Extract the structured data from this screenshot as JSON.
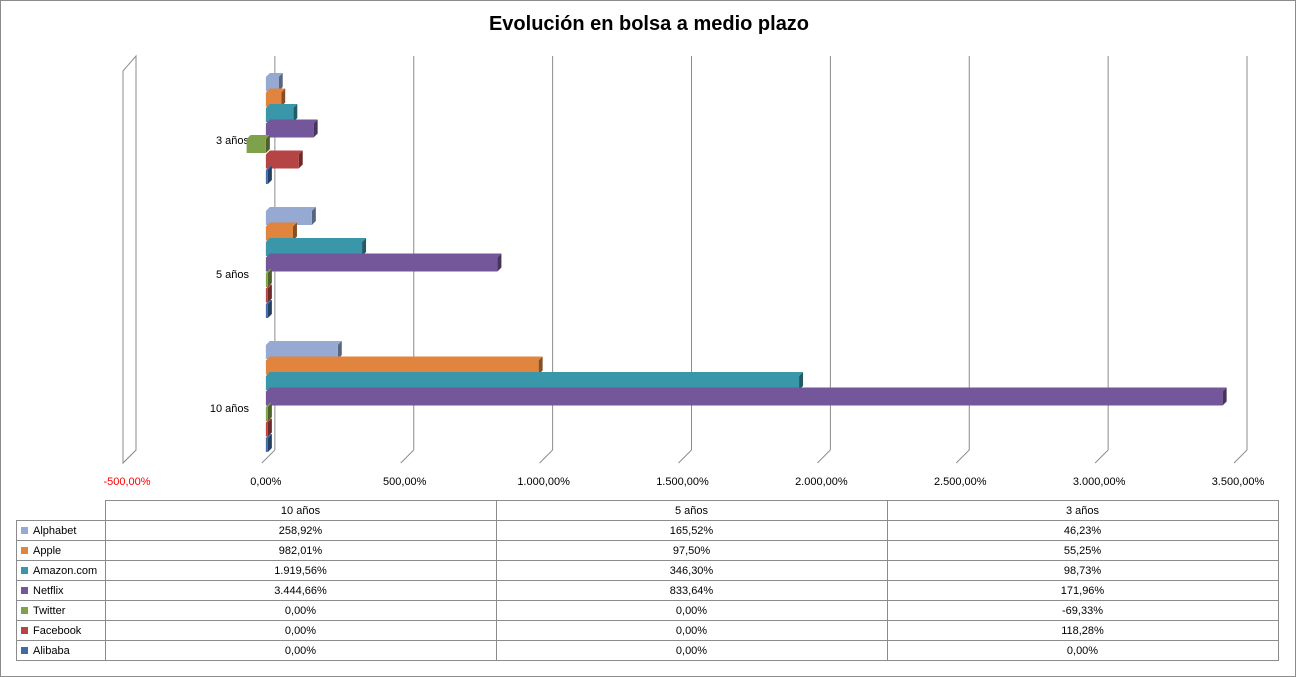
{
  "chart_data": {
    "type": "bar",
    "orientation": "horizontal",
    "style": "3d-clustered",
    "title": "Evolución en bolsa a medio plazo",
    "categories": [
      "10 años",
      "5 años",
      "3 años"
    ],
    "categories_display_order_top_to_bottom": [
      "3 años",
      "5 años",
      "10 años"
    ],
    "series": [
      {
        "name": "Alphabet",
        "color": "#95A9D3",
        "values": [
          258.92,
          165.52,
          46.23
        ],
        "labels": [
          "258,92%",
          "165,52%",
          "46,23%"
        ]
      },
      {
        "name": "Apple",
        "color": "#E0843E",
        "values": [
          982.01,
          97.5,
          55.25
        ],
        "labels": [
          "982,01%",
          "97,50%",
          "55,25%"
        ]
      },
      {
        "name": "Amazon.com",
        "color": "#3A97A9",
        "values": [
          1919.56,
          346.3,
          98.73
        ],
        "labels": [
          "1.919,56%",
          "346,30%",
          "98,73%"
        ]
      },
      {
        "name": "Netflix",
        "color": "#73579A",
        "values": [
          3444.66,
          833.64,
          171.96
        ],
        "labels": [
          "3.444,66%",
          "833,64%",
          "171,96%"
        ]
      },
      {
        "name": "Twitter",
        "color": "#80A14B",
        "values": [
          0.0,
          0.0,
          -69.33
        ],
        "labels": [
          "0,00%",
          "0,00%",
          "-69,33%"
        ]
      },
      {
        "name": "Facebook",
        "color": "#B74444",
        "values": [
          0.0,
          0.0,
          118.28
        ],
        "labels": [
          "0,00%",
          "0,00%",
          "118,28%"
        ]
      },
      {
        "name": "Alibaba",
        "color": "#3F6BA6",
        "values": [
          0.0,
          0.0,
          0.0
        ],
        "labels": [
          "0,00%",
          "0,00%",
          "0,00%"
        ]
      }
    ],
    "xaxis": {
      "min": -500,
      "max": 3500,
      "step": 500,
      "tick_labels": [
        "-500,00%",
        "0,00%",
        "500,00%",
        "1.000,00%",
        "1.500,00%",
        "2.000,00%",
        "2.500,00%",
        "3.000,00%",
        "3.500,00%"
      ],
      "negative_label_color": "#FF0000"
    },
    "grid": true,
    "legend": "data-table-below"
  }
}
